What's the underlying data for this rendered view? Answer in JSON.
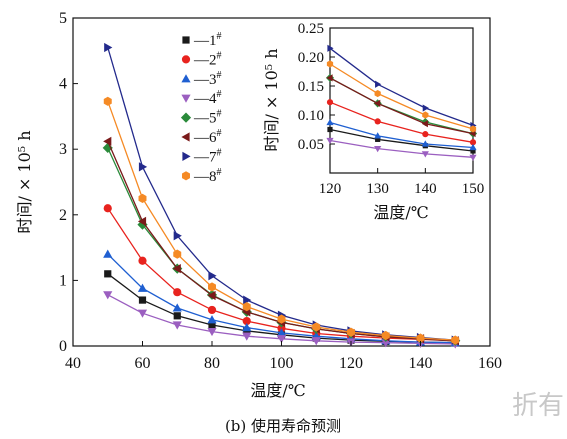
{
  "caption": "(b) 使用寿命预测",
  "watermark": "折有",
  "chart_data": [
    {
      "type": "line",
      "xlabel": "温度/℃",
      "ylabel": "时间/ × 10⁵ h",
      "xlim": [
        40,
        160
      ],
      "ylim": [
        0,
        5
      ],
      "xticks": [
        40,
        60,
        80,
        100,
        120,
        140,
        160
      ],
      "yticks": [
        0,
        1,
        2,
        3,
        4,
        5
      ],
      "x": [
        50,
        60,
        70,
        80,
        90,
        100,
        110,
        120,
        130,
        140,
        150
      ],
      "legend_placement": "top-center",
      "grid": false,
      "series": [
        {
          "name": "1#",
          "label_main": "—1",
          "label_sup": "#",
          "color": "#1a1a1a",
          "marker": "square",
          "values": [
            1.1,
            0.7,
            0.46,
            0.32,
            0.23,
            0.17,
            0.12,
            0.09,
            0.07,
            0.06,
            0.05
          ]
        },
        {
          "name": "2#",
          "label_main": "—2",
          "label_sup": "#",
          "color": "#e8231e",
          "marker": "circle",
          "values": [
            2.1,
            1.3,
            0.82,
            0.55,
            0.38,
            0.27,
            0.19,
            0.15,
            0.12,
            0.1,
            0.08
          ]
        },
        {
          "name": "3#",
          "label_main": "—3",
          "label_sup": "#",
          "color": "#1f5fd1",
          "marker": "triangle-up",
          "values": [
            1.4,
            0.88,
            0.58,
            0.4,
            0.28,
            0.2,
            0.15,
            0.11,
            0.08,
            0.06,
            0.05
          ]
        },
        {
          "name": "4#",
          "label_main": "—4",
          "label_sup": "#",
          "color": "#9b5fc0",
          "marker": "triangle-down",
          "values": [
            0.78,
            0.5,
            0.32,
            0.22,
            0.15,
            0.11,
            0.08,
            0.06,
            0.05,
            0.04,
            0.03
          ]
        },
        {
          "name": "5#",
          "label_main": "—5",
          "label_sup": "#",
          "color": "#2a8a3a",
          "marker": "diamond",
          "values": [
            3.02,
            1.85,
            1.18,
            0.78,
            0.52,
            0.36,
            0.26,
            0.19,
            0.14,
            0.11,
            0.08
          ]
        },
        {
          "name": "6#",
          "label_main": "—6",
          "label_sup": "#",
          "color": "#7a1a1a",
          "marker": "triangle-left",
          "values": [
            3.12,
            1.9,
            1.18,
            0.77,
            0.52,
            0.36,
            0.26,
            0.19,
            0.14,
            0.11,
            0.08
          ]
        },
        {
          "name": "7#",
          "label_main": "—7",
          "label_sup": "#",
          "color": "#232a8c",
          "marker": "triangle-right",
          "values": [
            4.55,
            2.73,
            1.68,
            1.07,
            0.7,
            0.47,
            0.32,
            0.23,
            0.17,
            0.13,
            0.09
          ]
        },
        {
          "name": "8#",
          "label_main": "—8",
          "label_sup": "#",
          "color": "#f58a25",
          "marker": "hexagon",
          "values": [
            3.73,
            2.25,
            1.4,
            0.9,
            0.6,
            0.41,
            0.29,
            0.21,
            0.16,
            0.12,
            0.09
          ]
        }
      ]
    },
    {
      "type": "line",
      "xlabel": "温度/℃",
      "ylabel": "时间/ × 10⁵ h",
      "xlim": [
        120,
        150
      ],
      "ylim": [
        0,
        0.25
      ],
      "xticks": [
        120,
        130,
        140,
        150
      ],
      "yticks": [
        0.05,
        0.1,
        0.15,
        0.2,
        0.25
      ],
      "ytick_labels": [
        "0.05",
        "0.10",
        "0.15",
        "0.20",
        "0.25"
      ],
      "x": [
        120,
        130,
        140,
        150
      ],
      "grid": false,
      "series": [
        {
          "name": "1#",
          "color": "#1a1a1a",
          "marker": "square",
          "values": [
            0.075,
            0.058,
            0.047,
            0.038
          ]
        },
        {
          "name": "2#",
          "color": "#e8231e",
          "marker": "circle",
          "values": [
            0.122,
            0.089,
            0.067,
            0.053
          ]
        },
        {
          "name": "3#",
          "color": "#1f5fd1",
          "marker": "triangle-up",
          "values": [
            0.087,
            0.064,
            0.05,
            0.044
          ]
        },
        {
          "name": "4#",
          "color": "#9b5fc0",
          "marker": "triangle-down",
          "values": [
            0.056,
            0.042,
            0.033,
            0.027
          ]
        },
        {
          "name": "5#",
          "color": "#2a8a3a",
          "marker": "diamond",
          "values": [
            0.164,
            0.12,
            0.088,
            0.068
          ]
        },
        {
          "name": "6#",
          "color": "#7a1a1a",
          "marker": "triangle-left",
          "values": [
            0.164,
            0.12,
            0.085,
            0.068
          ]
        },
        {
          "name": "7#",
          "color": "#232a8c",
          "marker": "triangle-right",
          "values": [
            0.215,
            0.153,
            0.112,
            0.082
          ]
        },
        {
          "name": "8#",
          "color": "#f58a25",
          "marker": "hexagon",
          "values": [
            0.188,
            0.137,
            0.1,
            0.076
          ]
        }
      ]
    }
  ]
}
